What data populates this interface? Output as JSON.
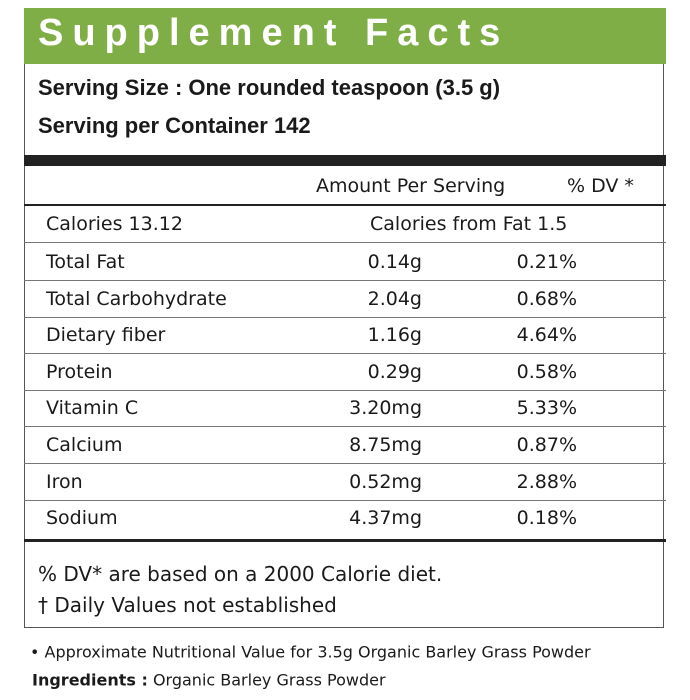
{
  "header": {
    "title": "Supplement Facts"
  },
  "serving": {
    "size": "Serving Size : One rounded teaspoon (3.5 g)",
    "per_container": "Serving per Container 142"
  },
  "table": {
    "header": [
      "Amount Per Serving",
      "% DV *"
    ],
    "calories": [
      "Calories 13.12",
      "Calories from Fat 1.5"
    ],
    "rows": [
      [
        "Total Fat",
        "0.14g",
        "0.21%"
      ],
      [
        "Total Carbohydrate",
        "2.04g",
        "0.68%"
      ],
      [
        "Dietary fiber",
        "1.16g",
        "4.64%"
      ],
      [
        "Protein",
        "0.29g",
        "0.58%"
      ],
      [
        "Vitamin C",
        "3.20mg",
        "5.33%"
      ],
      [
        "Calcium",
        "8.75mg",
        "0.87%"
      ],
      [
        "Iron",
        "0.52mg",
        "2.88%"
      ],
      [
        "Sodium",
        "4.37mg",
        "0.18%"
      ]
    ]
  },
  "footnotes": [
    "% DV* are based on a 2000 Calorie diet.",
    "† Daily Values not established"
  ],
  "note": "• Approximate Nutritional Value for 3.5g Organic Barley Grass Powder",
  "ingredients": {
    "label": "Ingredients :",
    "value": "Organic Barley Grass Powder"
  }
}
